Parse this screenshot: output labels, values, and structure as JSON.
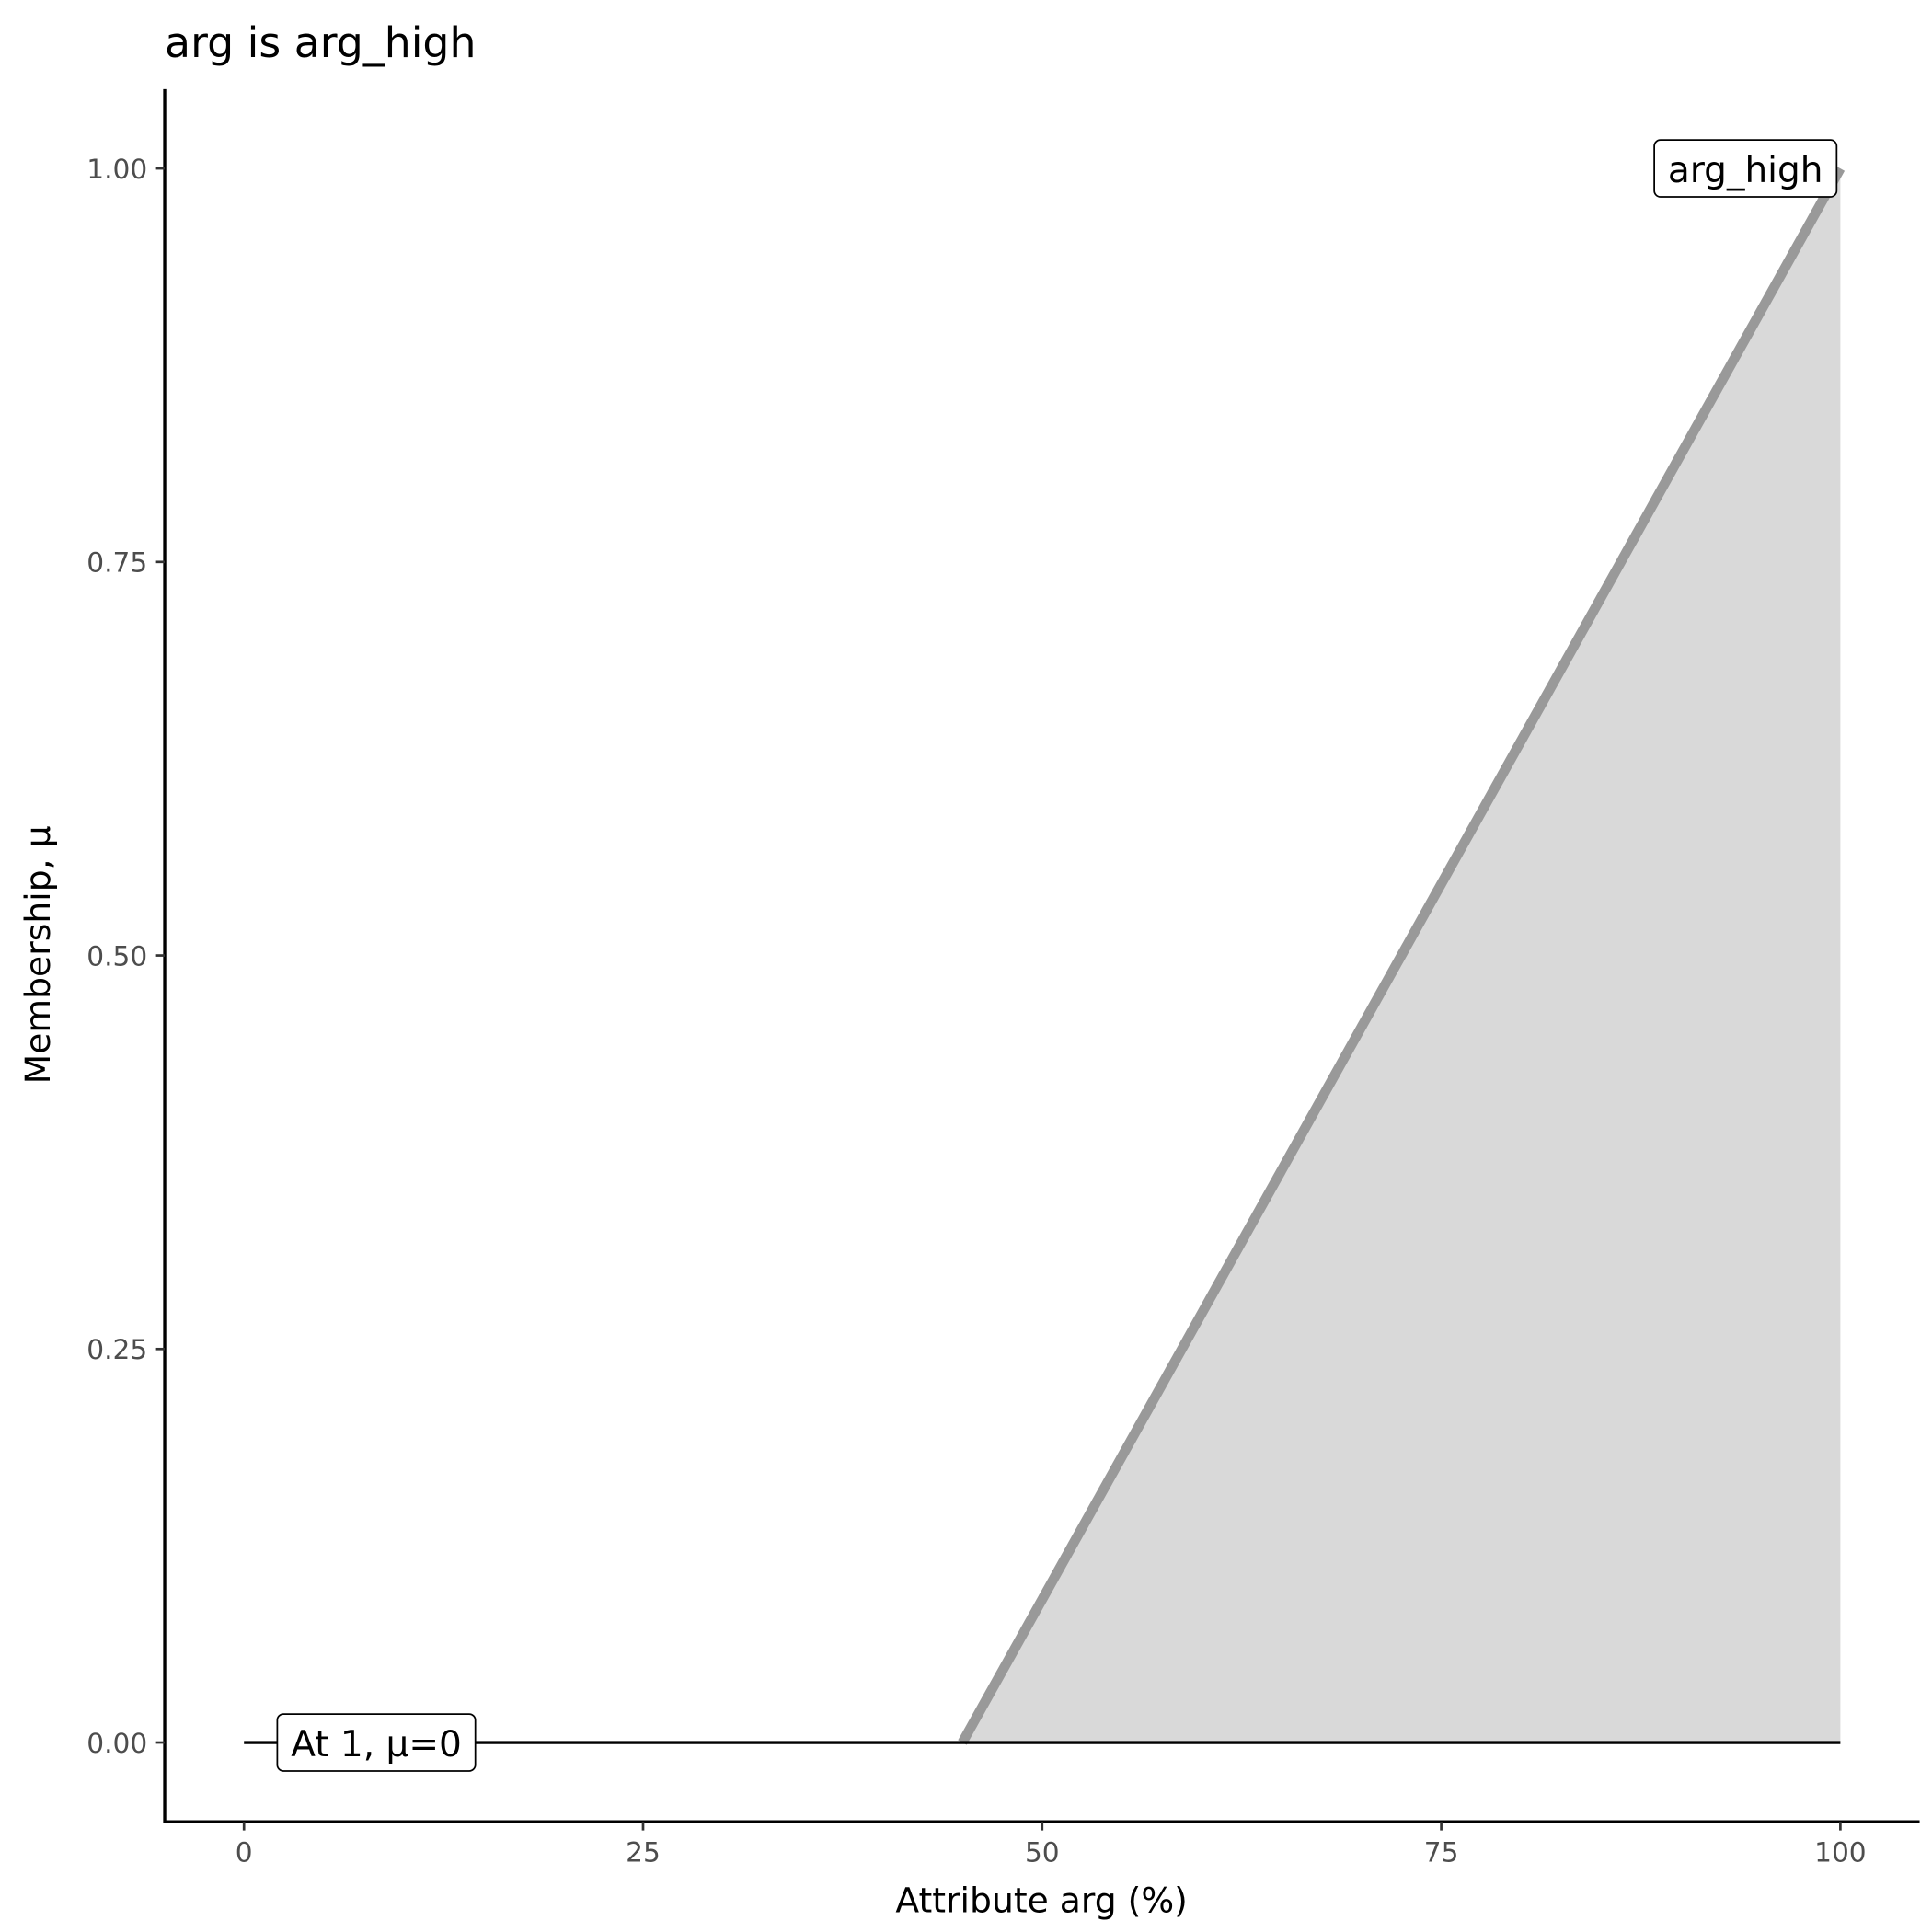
{
  "chart_data": {
    "type": "area",
    "title": "arg is arg_high",
    "xlabel": "Attribute arg (%)",
    "ylabel": "Membership, μ",
    "xlim": [
      0,
      100
    ],
    "ylim": [
      0,
      1
    ],
    "x_ticks": [
      "0",
      "25",
      "50",
      "75",
      "100"
    ],
    "y_ticks": [
      "0.00",
      "0.25",
      "0.50",
      "0.75",
      "1.00"
    ],
    "grid": false,
    "series": [
      {
        "name": "arg_high",
        "x": [
          45,
          100
        ],
        "y": [
          0,
          1
        ],
        "color": "#999999",
        "fill": "#d9d9d9"
      }
    ],
    "baseline": {
      "x": [
        0,
        100
      ],
      "y": [
        0,
        0
      ],
      "color": "#000000"
    },
    "annotations": [
      {
        "text": "arg_high",
        "x": 100,
        "y": 1
      },
      {
        "text": "At 1, μ=0",
        "x": 1,
        "y": 0
      }
    ]
  }
}
